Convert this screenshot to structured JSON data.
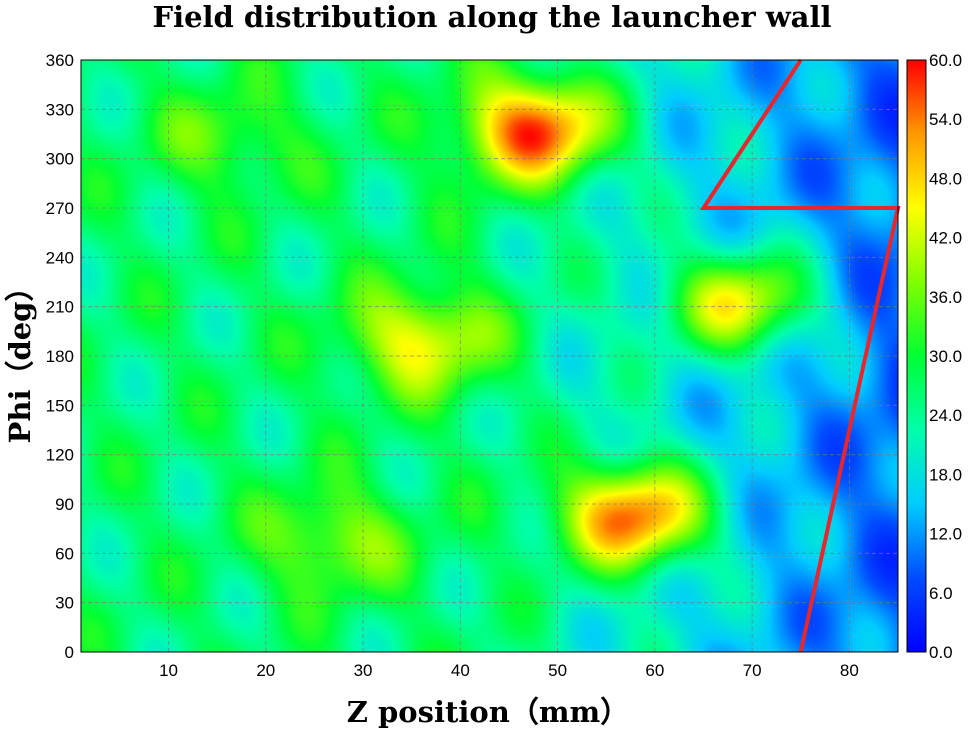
{
  "chart_data": {
    "type": "heatmap",
    "title": "Field distribution along the launcher wall",
    "xlabel": "Z position（mm）",
    "ylabel": "Phi（deg）",
    "xlim": [
      1,
      85
    ],
    "ylim": [
      0,
      360
    ],
    "x_ticks": [
      10,
      20,
      30,
      40,
      50,
      60,
      70,
      80
    ],
    "y_ticks": [
      0,
      30,
      60,
      90,
      120,
      150,
      180,
      210,
      240,
      270,
      300,
      330,
      360
    ],
    "grid": true,
    "colorbar": {
      "min": 0.0,
      "max": 60.0,
      "ticks": [
        "0.0",
        "6.0",
        "12.0",
        "18.0",
        "24.0",
        "30.0",
        "36.0",
        "42.0",
        "48.0",
        "54.0",
        "60.0"
      ],
      "colormap": "jet"
    },
    "hotspots": [
      {
        "z": 48,
        "phi": 318,
        "value": 57
      },
      {
        "z": 58,
        "phi": 83,
        "value": 59
      },
      {
        "z": 69,
        "phi": 213,
        "value": 52
      },
      {
        "z": 36,
        "phi": 190,
        "value": 43
      },
      {
        "z": 27,
        "phi": 68,
        "value": 37
      },
      {
        "z": 16,
        "phi": 312,
        "value": 33
      }
    ],
    "cut_line": {
      "color": "#e8262d",
      "points": [
        {
          "z": 75.0,
          "phi": 0
        },
        {
          "z": 85.0,
          "phi": 270
        },
        {
          "z": 65.0,
          "phi": 270
        },
        {
          "z": 75.0,
          "phi": 360
        }
      ]
    }
  }
}
